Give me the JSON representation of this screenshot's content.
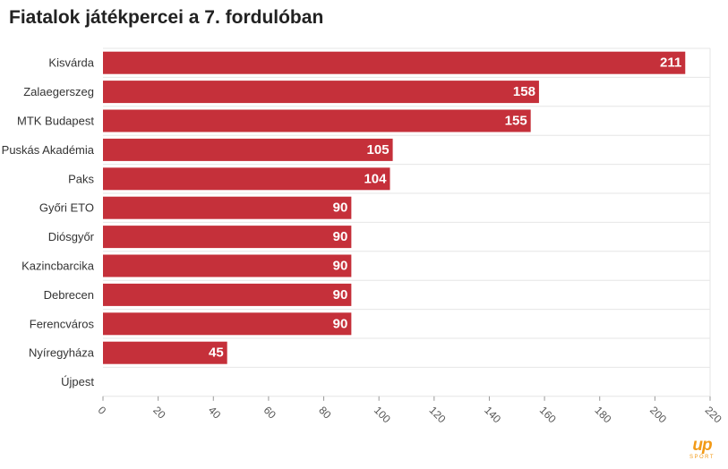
{
  "chart_data": {
    "type": "bar",
    "orientation": "horizontal",
    "title": "Fiatalok játékpercei a 7. fordulóban",
    "categories": [
      "Kisvárda",
      "Zalaegerszeg",
      "MTK Budapest",
      "Puskás Akadémia",
      "Paks",
      "Győri ETO",
      "Diósgyőr",
      "Kazincbarcika",
      "Debrecen",
      "Ferencváros",
      "Nyíregyháza",
      "Újpest"
    ],
    "values": [
      211,
      158,
      155,
      105,
      104,
      90,
      90,
      90,
      90,
      90,
      45,
      0
    ],
    "data_labels": [
      "211",
      "158",
      "155",
      "105",
      "104",
      "90",
      "90",
      "90",
      "90",
      "90",
      "45",
      ""
    ],
    "xlim": [
      0,
      220
    ],
    "xticks": [
      "0",
      "20",
      "40",
      "60",
      "80",
      "100",
      "120",
      "140",
      "160",
      "180",
      "200",
      "220"
    ],
    "grid": true,
    "colors": {
      "bar": "#c5303a",
      "grid": "#e6e6e6",
      "label_text": "#ffffff"
    }
  },
  "logo": {
    "main": "up",
    "sub": "SPORT"
  }
}
